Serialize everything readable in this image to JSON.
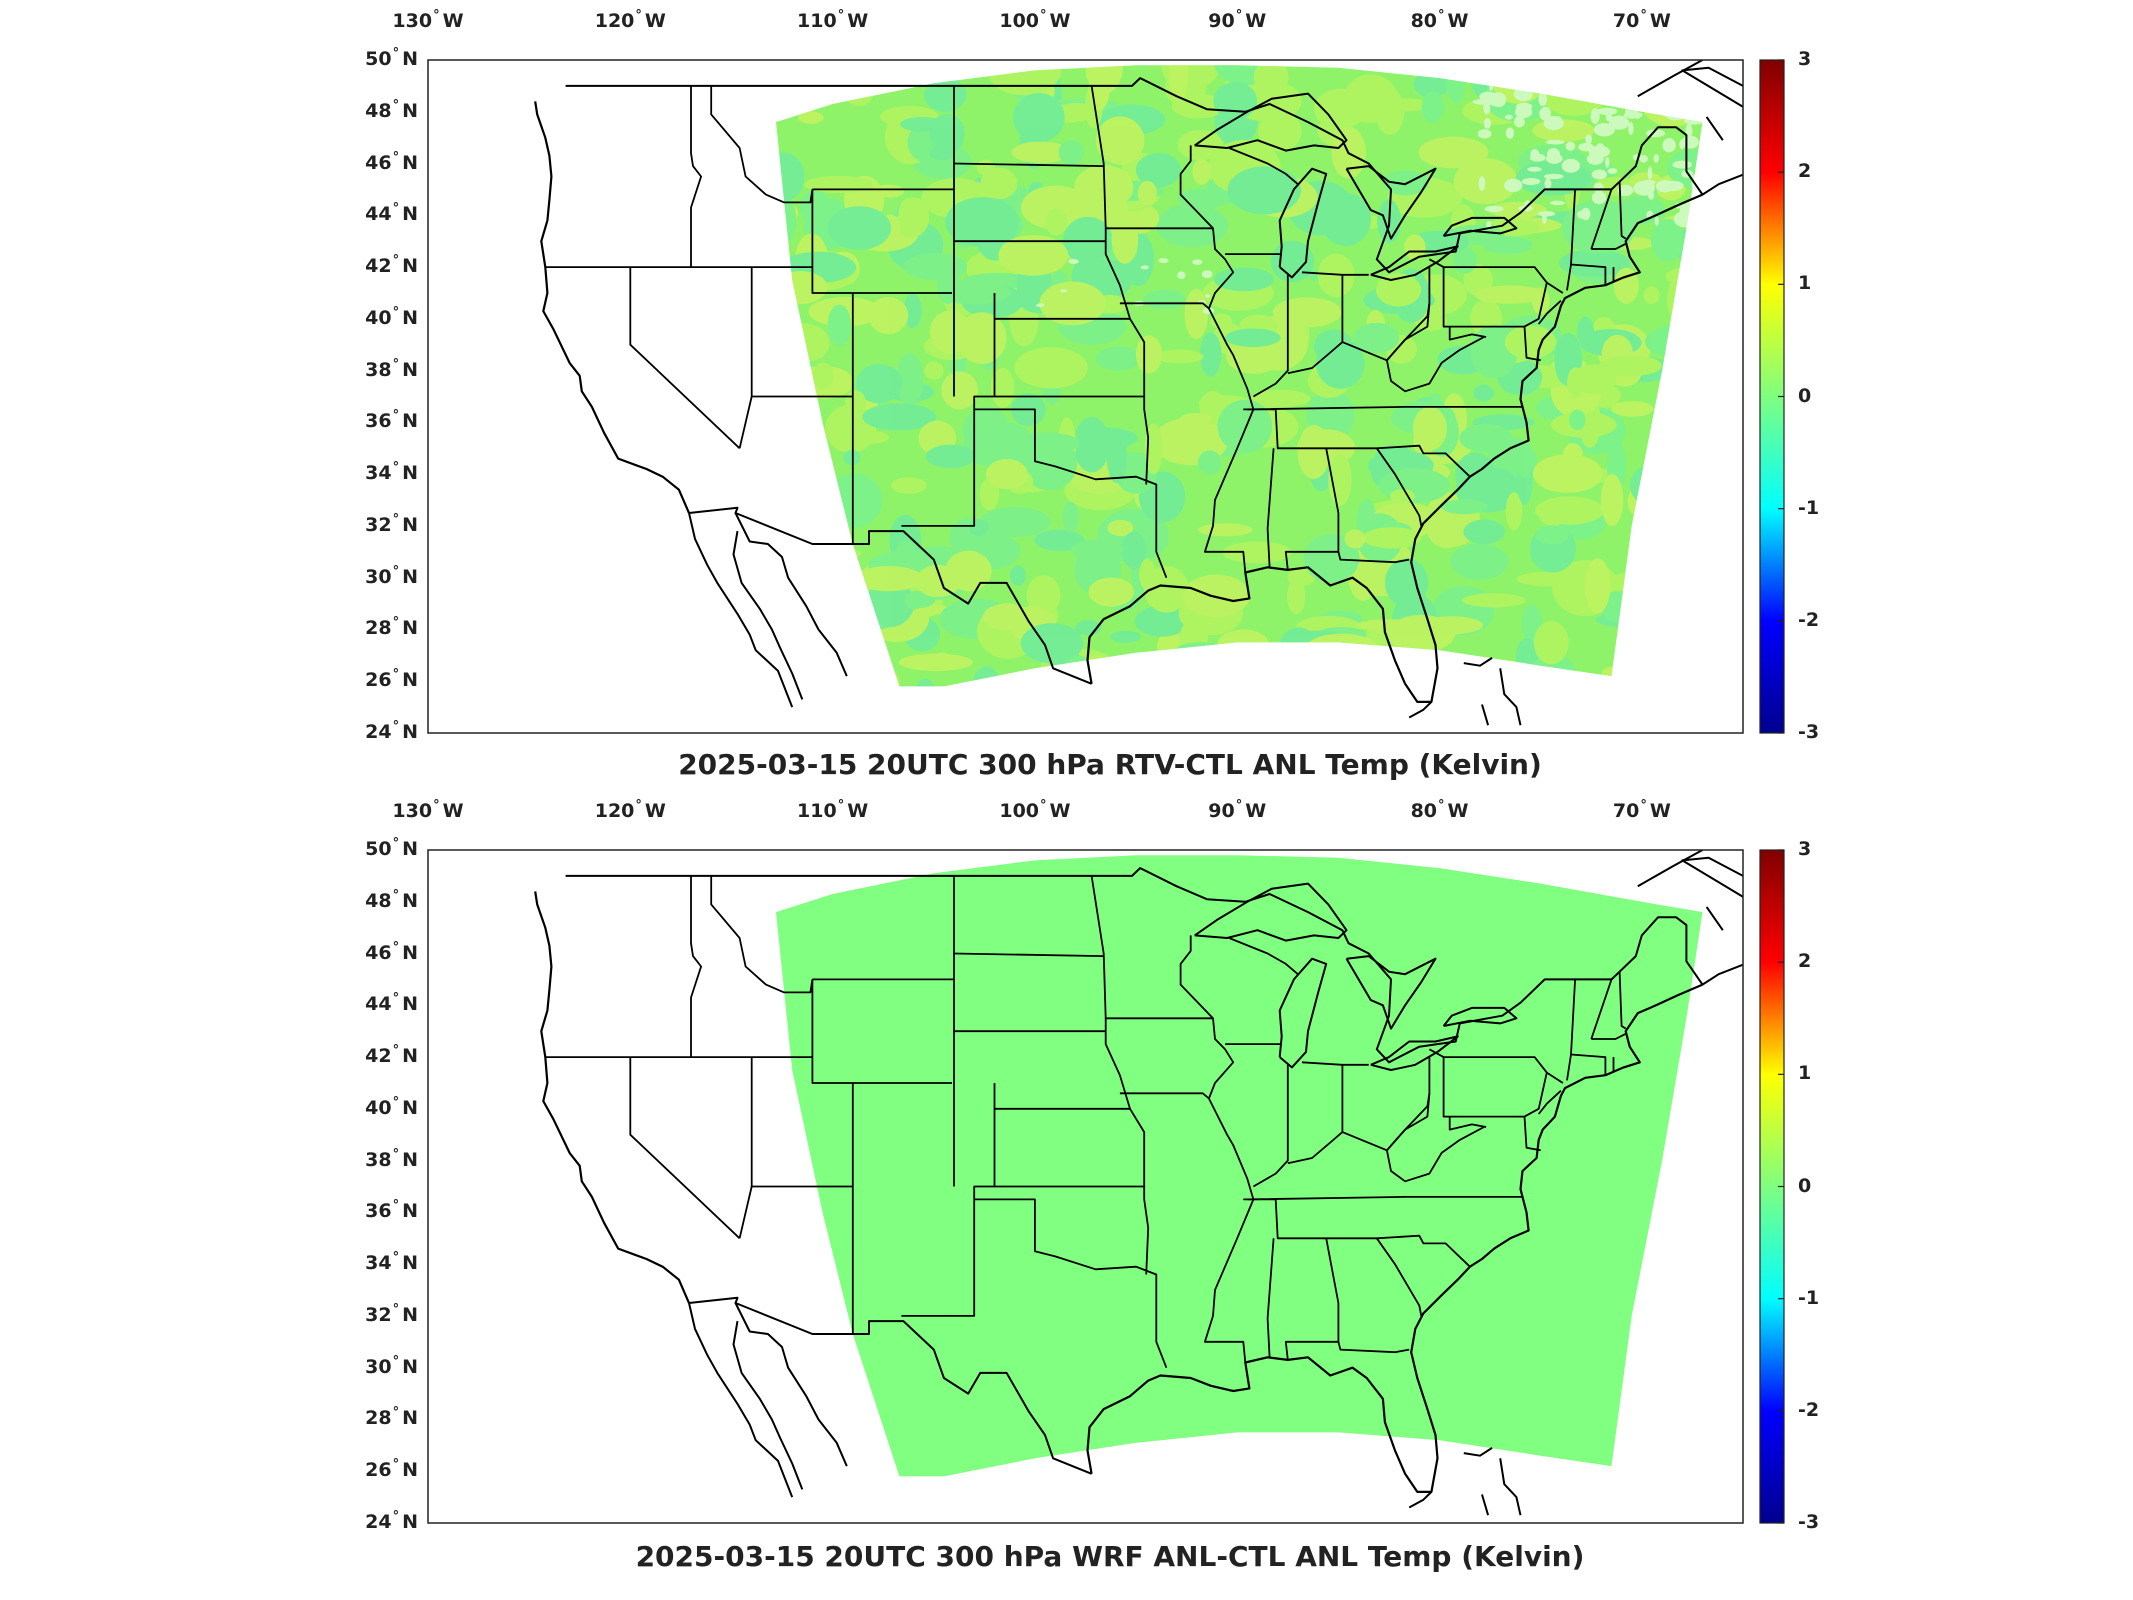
{
  "colorbar": {
    "min": -3,
    "max": 3,
    "ticks": [
      "3",
      "2",
      "1",
      "0",
      "-1",
      "-2",
      "-3"
    ],
    "colormap": "jet",
    "colors": [
      "#00008f",
      "#0000ff",
      "#00ffff",
      "#7fff7f",
      "#ffff00",
      "#ff0000",
      "#800000"
    ]
  },
  "map": {
    "lon_range": [
      -130,
      -65
    ],
    "lat_range": [
      24,
      50
    ],
    "lon_labels": [
      {
        "lon": -130,
        "num": "130",
        "hemi": "W"
      },
      {
        "lon": -120,
        "num": "120",
        "hemi": "W"
      },
      {
        "lon": -110,
        "num": "110",
        "hemi": "W"
      },
      {
        "lon": -100,
        "num": "100",
        "hemi": "W"
      },
      {
        "lon": -90,
        "num": "90",
        "hemi": "W"
      },
      {
        "lon": -80,
        "num": "80",
        "hemi": "W"
      },
      {
        "lon": -70,
        "num": "70",
        "hemi": "W"
      }
    ],
    "lat_labels": [
      {
        "lat": 50,
        "num": "50",
        "hemi": "N"
      },
      {
        "lat": 48,
        "num": "48",
        "hemi": "N"
      },
      {
        "lat": 46,
        "num": "46",
        "hemi": "N"
      },
      {
        "lat": 44,
        "num": "44",
        "hemi": "N"
      },
      {
        "lat": 42,
        "num": "42",
        "hemi": "N"
      },
      {
        "lat": 40,
        "num": "40",
        "hemi": "N"
      },
      {
        "lat": 38,
        "num": "38",
        "hemi": "N"
      },
      {
        "lat": 36,
        "num": "36",
        "hemi": "N"
      },
      {
        "lat": 34,
        "num": "34",
        "hemi": "N"
      },
      {
        "lat": 32,
        "num": "32",
        "hemi": "N"
      },
      {
        "lat": 30,
        "num": "30",
        "hemi": "N"
      },
      {
        "lat": 28,
        "num": "28",
        "hemi": "N"
      },
      {
        "lat": 26,
        "num": "26",
        "hemi": "N"
      },
      {
        "lat": 24,
        "num": "24",
        "hemi": "N"
      }
    ],
    "coast_color": "#000000"
  },
  "panels": [
    {
      "title": "2025-03-15 20UTC 300 hPa RTV-CTL ANL Temp (Kelvin)",
      "field_base_color": "#8ff36a",
      "field_tint_colors": [
        "#c8f55a",
        "#6ff0a0",
        "#5fe8b8",
        "#e0f25a"
      ],
      "missing_data_color": "#ffffff"
    },
    {
      "title": "2025-03-15 20UTC 300 hPa WRF ANL-CTL ANL Temp (Kelvin)",
      "field_base_color": "#80ff80"
    }
  ]
}
